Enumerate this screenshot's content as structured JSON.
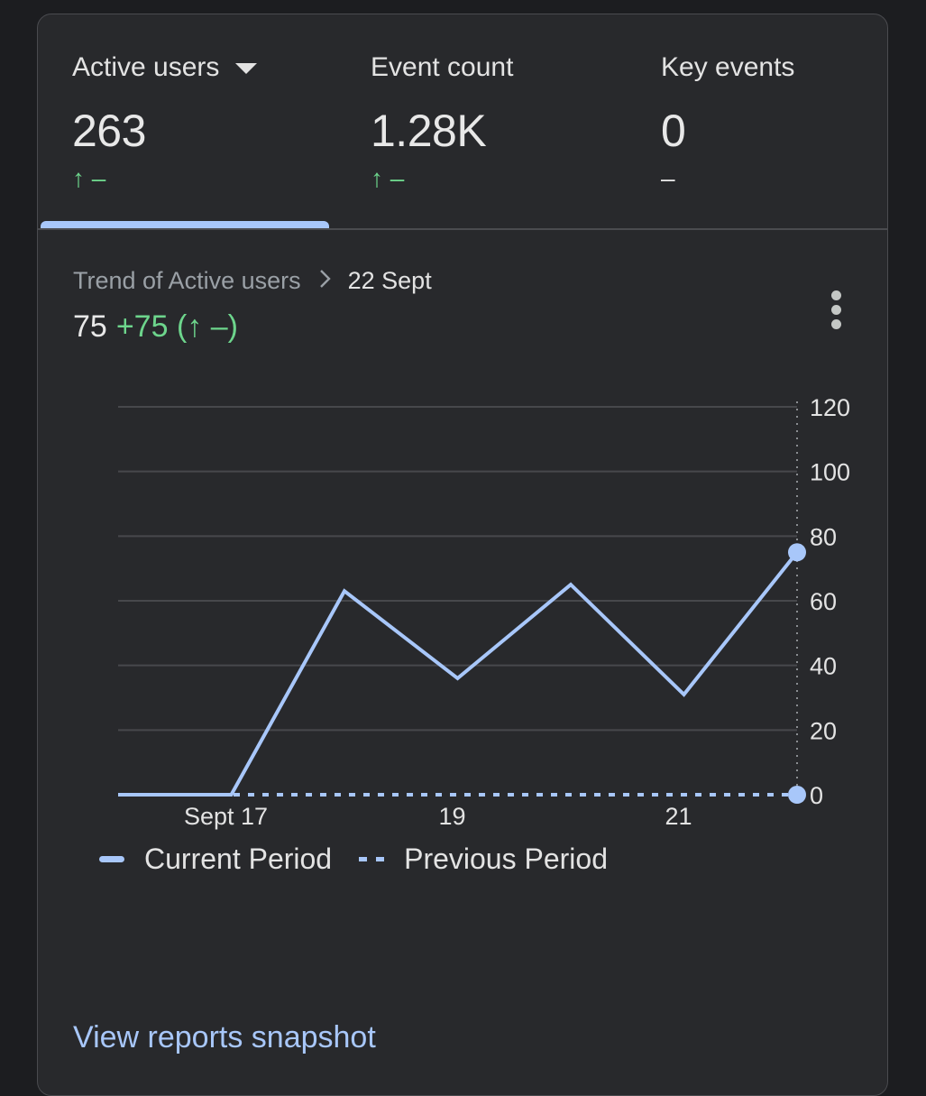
{
  "metrics": [
    {
      "label": "Active users",
      "value": "263",
      "delta": "↑ –",
      "selected": true
    },
    {
      "label": "Event count",
      "value": "1.28K",
      "delta": "↑ –"
    },
    {
      "label": "Key events",
      "value": "0",
      "delta": "–"
    }
  ],
  "trend": {
    "breadcrumb": "Trend of Active users",
    "date": "22 Sept",
    "value": "75",
    "change": "+75 (↑ –)"
  },
  "chart_data": {
    "type": "line",
    "x": [
      "Sept 16",
      "Sept 17",
      "Sept 18",
      "Sept 19",
      "Sept 20",
      "Sept 21",
      "Sept 22"
    ],
    "x_tick_labels": [
      "Sept 17",
      "19",
      "21"
    ],
    "y_tick_labels": [
      "0",
      "20",
      "40",
      "60",
      "80",
      "100",
      "120"
    ],
    "ylim": [
      0,
      120
    ],
    "series": [
      {
        "name": "Current Period",
        "values": [
          0,
          0,
          63,
          36,
          65,
          31,
          75
        ],
        "style": "solid",
        "color": "#a8c7fa"
      },
      {
        "name": "Previous Period",
        "values": [
          0,
          0,
          0,
          0,
          0,
          0,
          0
        ],
        "style": "dashed",
        "color": "#a8c7fa"
      }
    ],
    "grid": true,
    "y_axis_side": "right",
    "highlighted_point": "Sept 22"
  },
  "legend": {
    "current": "Current Period",
    "previous": "Previous Period"
  },
  "footer": {
    "link": "View reports snapshot"
  },
  "colors": {
    "accent": "#a8c7fa",
    "positive": "#6dd58c",
    "card": "#28292c",
    "background": "#1c1d20"
  }
}
